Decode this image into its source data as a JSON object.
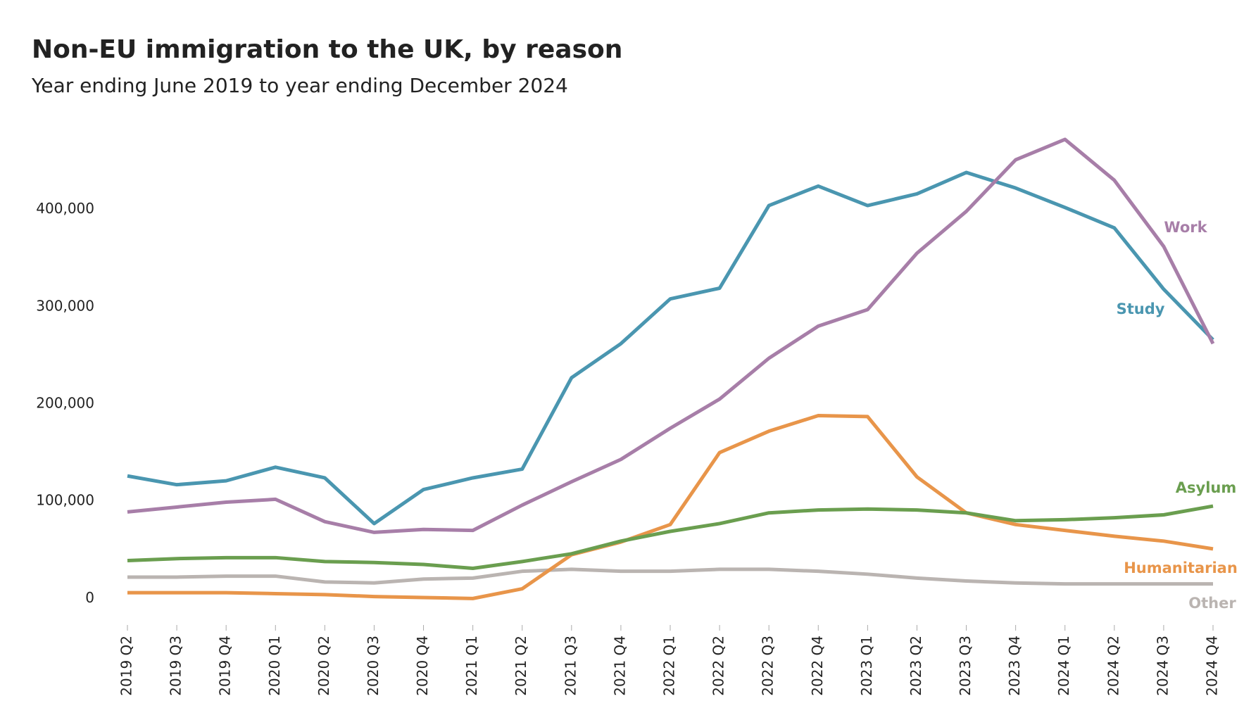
{
  "chart_data": {
    "type": "line",
    "title": "Non-EU immigration to the UK, by reason",
    "subtitle": "Year ending June 2019 to year ending December 2024",
    "categories": [
      "2019 Q2",
      "2019 Q3",
      "2019 Q4",
      "2020 Q1",
      "2020 Q2",
      "2020 Q3",
      "2020 Q4",
      "2021 Q1",
      "2021 Q2",
      "2021 Q3",
      "2021 Q4",
      "2022 Q1",
      "2022 Q2",
      "2022 Q3",
      "2022 Q4",
      "2023 Q1",
      "2023 Q2",
      "2023 Q3",
      "2023 Q4",
      "2024 Q1",
      "2024 Q2",
      "2024 Q3",
      "2024 Q4"
    ],
    "series": [
      {
        "name": "Other",
        "color": "#bab4b1",
        "values": [
          22000,
          22000,
          23000,
          23000,
          17000,
          16000,
          20000,
          21000,
          28000,
          30000,
          28000,
          28000,
          30000,
          30000,
          28000,
          25000,
          21000,
          18000,
          16000,
          15000,
          15000,
          15000,
          15000
        ]
      },
      {
        "name": "Humanitarian",
        "color": "#e8954a",
        "values": [
          6000,
          6000,
          6000,
          5000,
          4000,
          2000,
          1000,
          0,
          10000,
          45000,
          58000,
          76000,
          150000,
          172000,
          188000,
          187000,
          125000,
          88000,
          76000,
          70000,
          64000,
          59000,
          51000
        ]
      },
      {
        "name": "Asylum",
        "color": "#6a9e4f",
        "values": [
          39000,
          41000,
          42000,
          42000,
          38000,
          37000,
          35000,
          31000,
          38000,
          46000,
          59000,
          69000,
          77000,
          88000,
          91000,
          92000,
          91000,
          88000,
          80000,
          81000,
          83000,
          86000,
          95000
        ]
      },
      {
        "name": "Study",
        "color": "#4a96b0",
        "values": [
          126000,
          117000,
          121000,
          135000,
          124000,
          77000,
          112000,
          124000,
          133000,
          227000,
          262000,
          308000,
          319000,
          404000,
          424000,
          404000,
          416000,
          438000,
          422000,
          402000,
          381000,
          318000,
          266000
        ]
      },
      {
        "name": "Work",
        "color": "#a77ea8",
        "values": [
          89000,
          94000,
          99000,
          102000,
          79000,
          68000,
          71000,
          70000,
          96000,
          120000,
          143000,
          175000,
          205000,
          247000,
          280000,
          297000,
          355000,
          398000,
          451000,
          472000,
          430000,
          362000,
          262000
        ]
      }
    ],
    "ylim": [
      -20000,
      480000
    ],
    "yticks": [
      0,
      {
        "value": 100000,
        "label": "100,000"
      },
      {
        "value": 200000,
        "label": "200,000"
      },
      {
        "value": 300000,
        "label": "300,000"
      },
      {
        "value": 400000,
        "label": "400,000"
      }
    ],
    "grid": false
  }
}
